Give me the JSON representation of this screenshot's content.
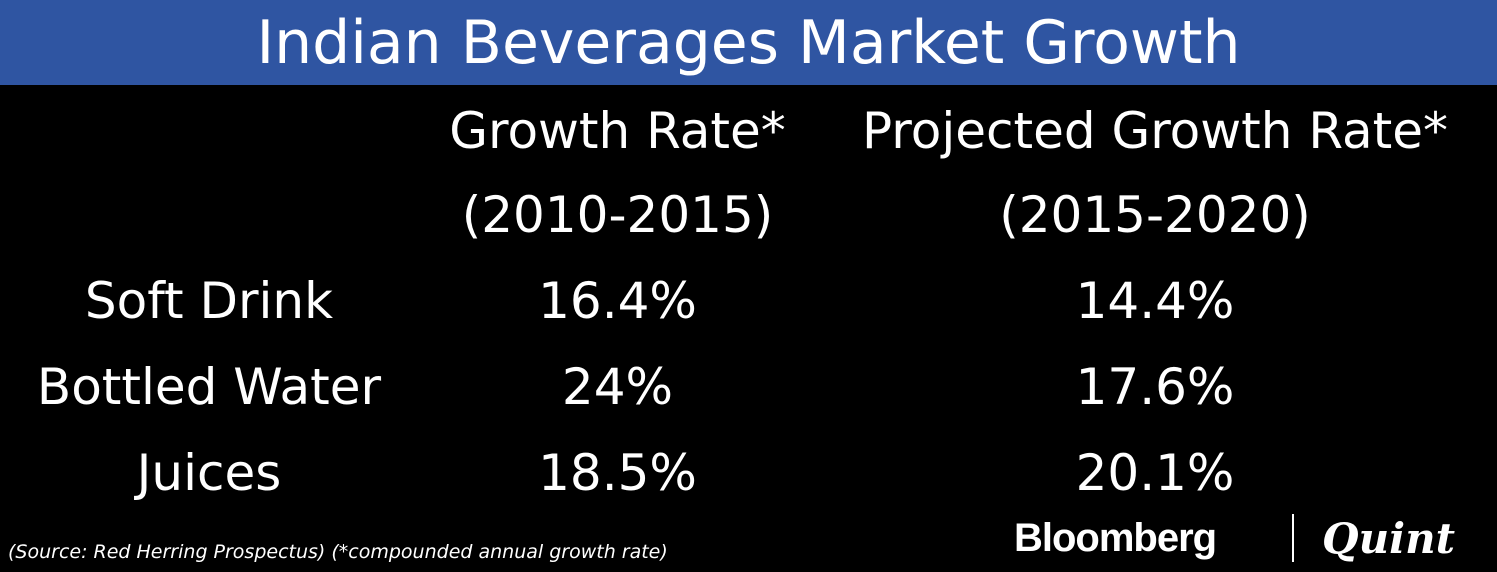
{
  "chart_data": {
    "type": "table",
    "title": "Indian Beverages Market Growth",
    "columns": [
      {
        "line1": "Growth Rate*",
        "line2": "(2010-2015)"
      },
      {
        "line1": "Projected Growth Rate*",
        "line2": "(2015-2020)"
      }
    ],
    "rows": [
      {
        "label": "Soft Drink",
        "values": [
          "16.4%",
          "14.4%"
        ]
      },
      {
        "label": "Bottled Water",
        "values": [
          "24%",
          "17.6%"
        ]
      },
      {
        "label": "Juices",
        "values": [
          "18.5%",
          "20.1%"
        ]
      }
    ]
  },
  "footer": {
    "source": "(Source: Red Herring Prospectus) (*compounded annual growth rate)"
  },
  "branding": {
    "logo_left": "Bloomberg",
    "logo_right": "Quint"
  },
  "colors": {
    "title_bar": "#2f55a2",
    "background": "#000000",
    "text": "#ffffff"
  }
}
